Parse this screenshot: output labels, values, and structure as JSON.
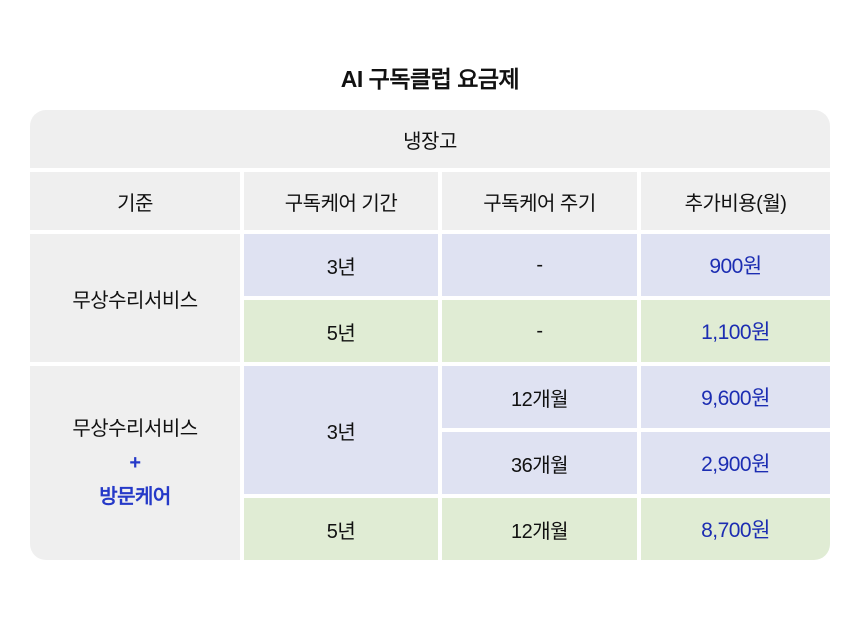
{
  "title": "AI 구독클럽 요금제",
  "table": {
    "category": "냉장고",
    "columns": [
      "기준",
      "구독케어 기간",
      "구독케어 주기",
      "추가비용(월)"
    ],
    "group1": {
      "label": "무상수리서비스",
      "rows": [
        {
          "period": "3년",
          "cycle": "-",
          "cost": "900원"
        },
        {
          "period": "5년",
          "cycle": "-",
          "cost": "1,100원"
        }
      ]
    },
    "group2": {
      "label_top": "무상수리서비스",
      "label_plus": "+",
      "label_bottom": "방문케어",
      "rows": [
        {
          "period": "3년",
          "cycle": "12개월",
          "cost": "9,600원"
        },
        {
          "cycle": "36개월",
          "cost": "2,900원"
        },
        {
          "period": "5년",
          "cycle": "12개월",
          "cost": "8,700원"
        }
      ]
    }
  },
  "colors": {
    "cell_gray": "#efefef",
    "cell_lavender": "#dfe2f2",
    "cell_green": "#e0ecd4",
    "price_blue": "#1c2db2",
    "care_blue": "#2539c8",
    "text_black": "#111111"
  },
  "chart_data": {
    "type": "table",
    "title": "AI 구독클럽 요금제",
    "category": "냉장고",
    "columns": [
      "기준",
      "구독케어 기간",
      "구독케어 주기",
      "추가비용(월)"
    ],
    "rows": [
      [
        "무상수리서비스",
        "3년",
        "-",
        "900원"
      ],
      [
        "무상수리서비스",
        "5년",
        "-",
        "1,100원"
      ],
      [
        "무상수리서비스 + 방문케어",
        "3년",
        "12개월",
        "9,600원"
      ],
      [
        "무상수리서비스 + 방문케어",
        "3년",
        "36개월",
        "2,900원"
      ],
      [
        "무상수리서비스 + 방문케어",
        "5년",
        "12개월",
        "8,700원"
      ]
    ]
  }
}
